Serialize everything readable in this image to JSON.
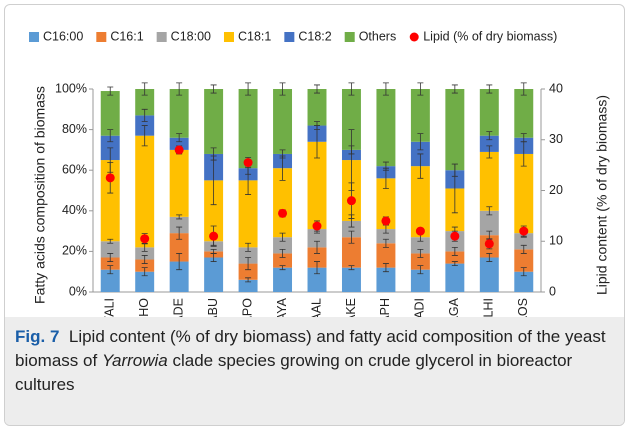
{
  "chart_data": {
    "type": "bar",
    "stacked": true,
    "categories": [
      "YALI",
      "YAHO",
      "YADE",
      "YABU",
      "YAPO",
      "YAYA",
      "YAAL",
      "YAKE",
      "YAPH",
      "YADI",
      "YAGA",
      "OLHI",
      "YAOS"
    ],
    "y_label": "Fatty acids composition of biomass",
    "y2_label": "Lipid content (% of dry biomass)",
    "ylim": [
      0,
      100
    ],
    "yticks": [
      {
        "value": 0,
        "label": "0%"
      },
      {
        "value": 20,
        "label": "20%"
      },
      {
        "value": 40,
        "label": "40%"
      },
      {
        "value": 60,
        "label": "60%"
      },
      {
        "value": 80,
        "label": "80%"
      },
      {
        "value": 100,
        "label": "100%"
      }
    ],
    "y2lim": [
      0,
      40
    ],
    "y2ticks": [
      0,
      10,
      20,
      30,
      40
    ],
    "legend": "top",
    "series": [
      {
        "name": "C16:00",
        "color": "#5b9bd5",
        "values": [
          11,
          10,
          15,
          17,
          6,
          12,
          12,
          12,
          12,
          11,
          14,
          17,
          10
        ],
        "errors": [
          2,
          2,
          4,
          2,
          1,
          1,
          3,
          1,
          2,
          2,
          1,
          2,
          2
        ]
      },
      {
        "name": "C16:1",
        "color": "#ed7d31",
        "values": [
          6,
          6,
          14,
          3,
          8,
          7,
          10,
          15,
          12,
          8,
          6,
          11,
          11
        ],
        "errors": [
          2,
          2,
          3,
          1,
          3,
          2,
          3,
          3,
          2,
          2,
          2,
          2,
          2
        ]
      },
      {
        "name": "C18:00",
        "color": "#a5a5a5",
        "values": [
          8,
          6,
          8,
          5,
          8,
          8,
          9,
          8,
          7,
          8,
          10,
          12,
          8
        ],
        "errors": [
          1,
          2,
          1,
          2,
          2,
          2,
          2,
          3,
          2,
          2,
          2,
          2,
          2
        ]
      },
      {
        "name": "C18:1",
        "color": "#ffc000",
        "values": [
          40,
          55,
          33,
          30,
          33,
          34,
          43,
          30,
          25,
          35,
          21,
          29,
          39
        ],
        "errors": [
          6,
          5,
          2,
          12,
          7,
          6,
          8,
          15,
          5,
          6,
          12,
          3,
          6
        ]
      },
      {
        "name": "C18:2",
        "color": "#4472c4",
        "values": [
          12,
          10,
          6,
          13,
          6,
          7,
          8,
          5,
          6,
          12,
          9,
          8,
          8
        ],
        "errors": [
          3,
          3,
          2,
          3,
          3,
          2,
          2,
          2,
          2,
          4,
          3,
          2,
          2
        ]
      },
      {
        "name": "Others",
        "color": "#70ad47",
        "values": [
          22,
          13,
          24,
          32,
          39,
          32,
          18,
          30,
          38,
          26,
          40,
          23,
          24
        ],
        "errors": [
          2,
          3,
          3,
          2,
          3,
          3,
          2,
          3,
          3,
          3,
          2,
          2,
          3
        ]
      },
      {
        "name": "Lipid (% of dry biomass)",
        "type": "scatter",
        "axis": "y2",
        "color": "#ff0000",
        "values": [
          22.5,
          10.5,
          28,
          11,
          25.5,
          15.5,
          13,
          18,
          14,
          12,
          11,
          9.5,
          12
        ],
        "errors": [
          3,
          1,
          0.5,
          2,
          1,
          0.7,
          1,
          3.5,
          0.8,
          0.5,
          1,
          1,
          1
        ]
      }
    ]
  },
  "caption": {
    "label": "Fig. 7",
    "text": [
      "Lipid content (% of dry biomass) and fatty acid composition of the yeast biomass of ",
      "Yarrowia",
      " clade species growing on crude glycerol in bioreactor cultures"
    ]
  }
}
